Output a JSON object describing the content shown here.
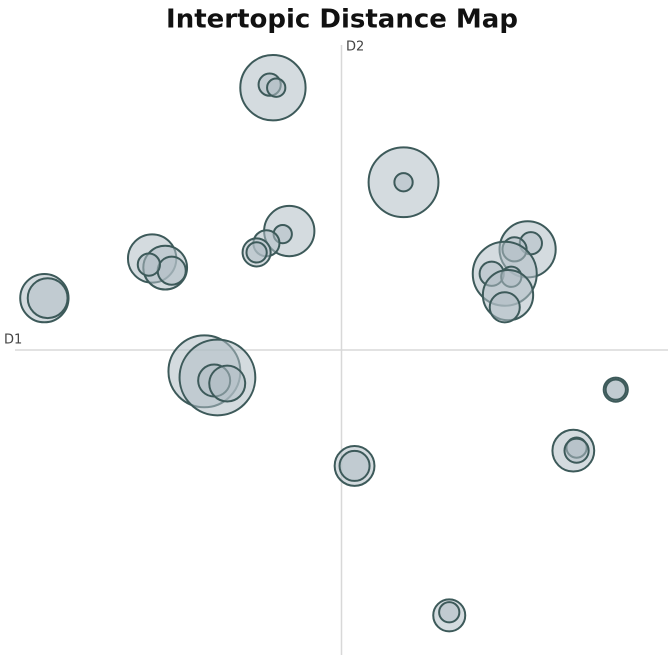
{
  "chart_data": {
    "type": "scatter",
    "title": "Intertopic Distance Map",
    "xlabel": "D1",
    "ylabel": "D2",
    "xlim": [
      -10,
      10
    ],
    "ylim": [
      -10,
      10
    ],
    "series": [
      {
        "color": "#b0bec5",
        "edge_color": "#3d5a5a",
        "x": [
          -2.1,
          -2.2,
          -2.0,
          1.9,
          1.9,
          -1.6,
          -1.8,
          -2.3,
          -2.6,
          -2.6,
          -5.8,
          -5.4,
          -5.2,
          -5.9,
          -9.1,
          -9.0,
          5.7,
          5.8,
          5.3,
          5.0,
          4.6,
          5.2,
          5.1,
          5.0,
          -4.2,
          -3.8,
          -3.9,
          -3.5,
          8.4,
          8.4,
          0.4,
          0.4,
          7.1,
          7.2,
          7.2,
          3.3,
          3.3
        ],
        "y": [
          8.6,
          8.7,
          8.6,
          5.5,
          5.5,
          3.9,
          3.8,
          3.5,
          3.2,
          3.2,
          3.0,
          2.7,
          2.6,
          2.8,
          1.7,
          1.7,
          3.3,
          3.5,
          3.3,
          2.5,
          2.5,
          2.4,
          1.8,
          1.4,
          -0.7,
          -0.9,
          -1.0,
          -1.1,
          -1.3,
          -1.3,
          -3.8,
          -3.8,
          -3.3,
          -3.2,
          -3.3,
          -8.7,
          -8.6
        ],
        "size": [
          1.0,
          0.34,
          0.28,
          1.07,
          0.28,
          0.77,
          0.28,
          0.4,
          0.43,
          0.31,
          0.74,
          0.67,
          0.43,
          0.34,
          0.74,
          0.61,
          0.86,
          0.34,
          0.37,
          0.98,
          0.37,
          0.31,
          0.77,
          0.46,
          1.1,
          1.16,
          0.49,
          0.55,
          0.37,
          0.31,
          0.61,
          0.46,
          0.64,
          0.31,
          0.37,
          0.49,
          0.31
        ]
      }
    ]
  }
}
